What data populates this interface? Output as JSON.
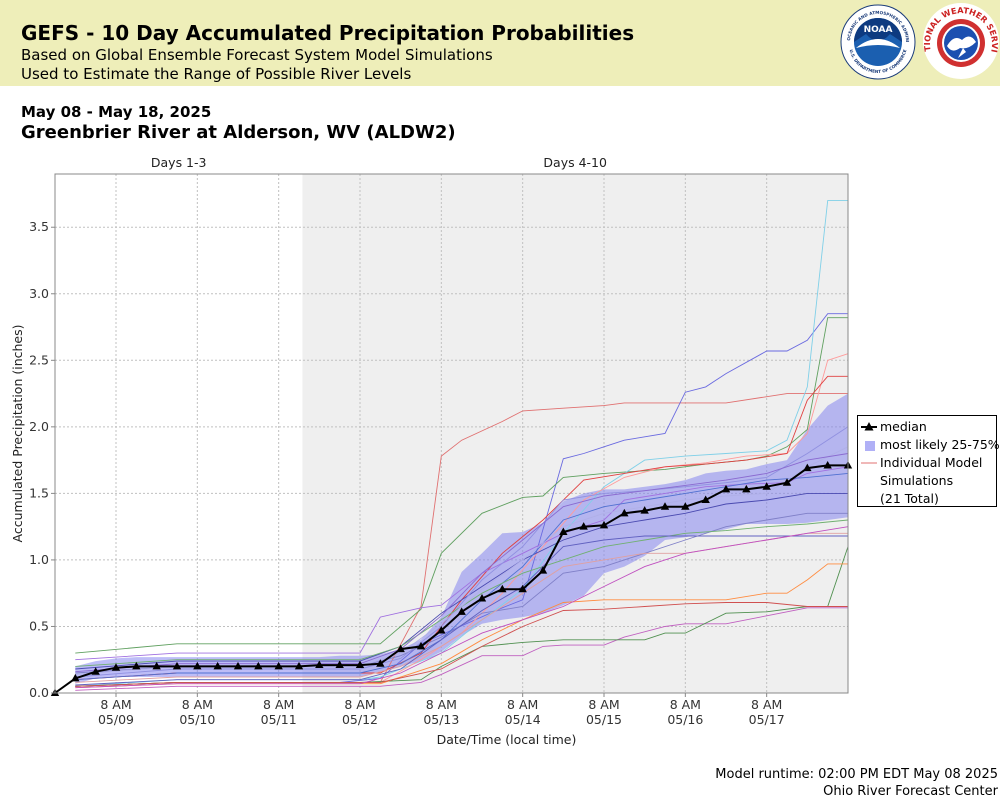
{
  "header": {
    "title": "GEFS - 10 Day Accumulated Precipitation Probabilities",
    "subtitle_1": "Based on Global Ensemble Forecast System Model Simulations",
    "subtitle_2": "Used to Estimate the Range of Possible River Levels",
    "logos": [
      "noaa-logo",
      "national-weather-service-logo"
    ],
    "noaa_logo_text": "NOAA",
    "noaa_ring_text": "NATIONAL OCEANIC AND ATMOSPHERIC ADMINISTRATION",
    "noaa_ring_bottom": "U.S. DEPARTMENT OF COMMERCE",
    "nws_ring_text": "NATIONAL WEATHER SERVICE"
  },
  "date_range": "May 08 - May 18, 2025",
  "station": "Greenbrier River at Alderson, WV (ALDW2)",
  "footer": {
    "runtime": "Model runtime: 02:00 PM EDT May 08 2025",
    "center": "Ohio River Forecast Center"
  },
  "colors": {
    "banner": "#eeeeb9",
    "band": "#7b7bf0",
    "median": "#000000",
    "shaded_region": "#efefef"
  },
  "chart_data": {
    "type": "line",
    "title": "",
    "xlabel": "Date/Time (local time)",
    "ylabel": "Accumulated Precipitation (inches)",
    "x_unit": "hours after 2 PM EDT May 08 2025",
    "xlim": [
      0,
      234
    ],
    "ylim": [
      0,
      3.9
    ],
    "y_ticks": [
      0.0,
      0.5,
      1.0,
      1.5,
      2.0,
      2.5,
      3.0,
      3.5
    ],
    "y_tick_labels": [
      "0.0",
      "0.5",
      "1.0",
      "1.5",
      "2.0",
      "2.5",
      "3.0",
      "3.5"
    ],
    "x_ticks": [
      {
        "x": 18,
        "line1": "8 AM",
        "line2": "05/09"
      },
      {
        "x": 42,
        "line1": "8 AM",
        "line2": "05/10"
      },
      {
        "x": 66,
        "line1": "8 AM",
        "line2": "05/11"
      },
      {
        "x": 90,
        "line1": "8 AM",
        "line2": "05/12"
      },
      {
        "x": 114,
        "line1": "8 AM",
        "line2": "05/13"
      },
      {
        "x": 138,
        "line1": "8 AM",
        "line2": "05/14"
      },
      {
        "x": 162,
        "line1": "8 AM",
        "line2": "05/15"
      },
      {
        "x": 186,
        "line1": "8 AM",
        "line2": "05/16"
      },
      {
        "x": 210,
        "line1": "8 AM",
        "line2": "05/17"
      }
    ],
    "periods": [
      {
        "label": "Days 1-3",
        "start": 0,
        "end": 73
      },
      {
        "label": "Days 4-10",
        "start": 73,
        "end": 234
      }
    ],
    "grid": true,
    "legend": {
      "placement": "right",
      "entries": [
        {
          "label": "median",
          "type": "median"
        },
        {
          "label": "most likely 25-75%",
          "type": "band"
        },
        {
          "label": "Individual Model",
          "type": "member"
        },
        {
          "label": "Simulations",
          "type": "text"
        },
        {
          "label": "(21 Total)",
          "type": "text"
        }
      ]
    },
    "median": {
      "name": "median",
      "x": [
        0,
        6,
        12,
        18,
        24,
        30,
        36,
        42,
        48,
        54,
        60,
        66,
        72,
        78,
        84,
        90,
        96,
        102,
        108,
        114,
        120,
        126,
        132,
        138,
        144,
        150,
        156,
        162,
        168,
        174,
        180,
        186,
        192,
        198,
        204,
        210,
        216,
        222,
        228,
        234
      ],
      "values": [
        0.0,
        0.11,
        0.16,
        0.19,
        0.2,
        0.2,
        0.2,
        0.2,
        0.2,
        0.2,
        0.2,
        0.2,
        0.2,
        0.21,
        0.21,
        0.21,
        0.22,
        0.33,
        0.35,
        0.47,
        0.61,
        0.71,
        0.78,
        0.78,
        0.92,
        1.21,
        1.25,
        1.26,
        1.35,
        1.37,
        1.4,
        1.4,
        1.45,
        1.53,
        1.53,
        1.55,
        1.58,
        1.69,
        1.71,
        1.71
      ]
    },
    "band": {
      "name": "most likely 25-75%",
      "x": [
        6,
        12,
        18,
        24,
        30,
        36,
        42,
        48,
        54,
        60,
        66,
        72,
        78,
        84,
        90,
        96,
        102,
        108,
        114,
        120,
        126,
        132,
        138,
        144,
        150,
        156,
        162,
        168,
        174,
        180,
        186,
        192,
        198,
        204,
        210,
        216,
        222,
        228,
        234
      ],
      "low": [
        0.07,
        0.11,
        0.12,
        0.12,
        0.12,
        0.12,
        0.12,
        0.12,
        0.12,
        0.12,
        0.12,
        0.12,
        0.12,
        0.12,
        0.12,
        0.16,
        0.2,
        0.24,
        0.31,
        0.43,
        0.52,
        0.55,
        0.57,
        0.6,
        0.66,
        0.73,
        0.9,
        0.95,
        1.03,
        1.15,
        1.17,
        1.2,
        1.23,
        1.27,
        1.27,
        1.27,
        1.28,
        1.3,
        1.32
      ],
      "high": [
        0.2,
        0.24,
        0.26,
        0.27,
        0.27,
        0.27,
        0.27,
        0.27,
        0.27,
        0.27,
        0.27,
        0.27,
        0.27,
        0.28,
        0.28,
        0.29,
        0.33,
        0.4,
        0.57,
        0.91,
        1.05,
        1.2,
        1.21,
        1.28,
        1.44,
        1.5,
        1.53,
        1.53,
        1.55,
        1.57,
        1.6,
        1.65,
        1.67,
        1.68,
        1.72,
        1.75,
        1.98,
        2.16,
        2.25
      ]
    },
    "members": [
      {
        "color": "#e07070",
        "x": [
          6,
          36,
          96,
          108,
          114,
          120,
          132,
          138,
          150,
          162,
          168,
          198,
          216,
          222,
          234
        ],
        "values": [
          0.05,
          0.08,
          0.08,
          0.65,
          1.78,
          1.9,
          2.04,
          2.12,
          2.14,
          2.16,
          2.18,
          2.18,
          2.25,
          2.25,
          2.25
        ]
      },
      {
        "color": "#6a6ae0",
        "x": [
          6,
          36,
          84,
          96,
          108,
          132,
          138,
          150,
          156,
          162,
          168,
          180,
          186,
          192,
          198,
          210,
          216,
          222,
          228,
          234
        ],
        "values": [
          0.05,
          0.08,
          0.08,
          0.11,
          0.37,
          0.64,
          0.7,
          1.76,
          1.8,
          1.85,
          1.9,
          1.95,
          2.26,
          2.3,
          2.4,
          2.57,
          2.57,
          2.65,
          2.85,
          2.85
        ]
      },
      {
        "color": "#60a060",
        "x": [
          6,
          36,
          90,
          96,
          108,
          114,
          126,
          138,
          144,
          150,
          162,
          180,
          192,
          204,
          210,
          216,
          222,
          228,
          234
        ],
        "values": [
          0.3,
          0.37,
          0.37,
          0.37,
          0.63,
          1.05,
          1.35,
          1.47,
          1.48,
          1.62,
          1.65,
          1.68,
          1.72,
          1.75,
          1.78,
          1.85,
          1.98,
          2.82,
          2.82
        ]
      },
      {
        "color": "#80d0e8",
        "x": [
          6,
          36,
          90,
          96,
          114,
          126,
          138,
          150,
          162,
          174,
          186,
          198,
          210,
          216,
          222,
          228,
          234
        ],
        "values": [
          0.05,
          0.1,
          0.1,
          0.12,
          0.3,
          0.55,
          0.78,
          1.2,
          1.55,
          1.75,
          1.78,
          1.8,
          1.82,
          1.9,
          2.3,
          3.7,
          3.7
        ]
      },
      {
        "color": "#ff9a9a",
        "x": [
          6,
          36,
          96,
          108,
          120,
          132,
          144,
          156,
          168,
          180,
          192,
          204,
          216,
          222,
          228,
          234
        ],
        "values": [
          0.05,
          0.08,
          0.08,
          0.25,
          0.45,
          0.75,
          1.1,
          1.45,
          1.62,
          1.7,
          1.73,
          1.78,
          1.8,
          1.95,
          2.5,
          2.55
        ]
      },
      {
        "color": "#e04040",
        "x": [
          6,
          36,
          96,
          108,
          120,
          132,
          144,
          156,
          168,
          180,
          192,
          204,
          216,
          222,
          228,
          234
        ],
        "values": [
          0.1,
          0.15,
          0.15,
          0.3,
          0.7,
          1.05,
          1.3,
          1.6,
          1.65,
          1.7,
          1.72,
          1.75,
          1.8,
          2.2,
          2.38,
          2.38
        ]
      },
      {
        "color": "#c060c0",
        "x": [
          6,
          36,
          90,
          96,
          108,
          114,
          126,
          138,
          144,
          150,
          162,
          168,
          180,
          186,
          198,
          210,
          222,
          228,
          234
        ],
        "values": [
          0.02,
          0.05,
          0.05,
          0.05,
          0.08,
          0.14,
          0.28,
          0.28,
          0.35,
          0.36,
          0.36,
          0.42,
          0.5,
          0.52,
          0.52,
          0.58,
          0.64,
          0.64,
          0.64
        ]
      },
      {
        "color": "#509050",
        "x": [
          6,
          36,
          90,
          108,
          114,
          126,
          138,
          150,
          162,
          174,
          180,
          186,
          198,
          210,
          222,
          228,
          234
        ],
        "values": [
          0.05,
          0.08,
          0.08,
          0.1,
          0.2,
          0.35,
          0.38,
          0.4,
          0.4,
          0.4,
          0.45,
          0.45,
          0.6,
          0.61,
          0.65,
          0.65,
          1.1
        ]
      },
      {
        "color": "#ff8c40",
        "x": [
          6,
          36,
          96,
          114,
          126,
          138,
          150,
          162,
          174,
          186,
          198,
          210,
          216,
          222,
          228,
          234
        ],
        "values": [
          0.04,
          0.07,
          0.07,
          0.22,
          0.4,
          0.55,
          0.68,
          0.7,
          0.7,
          0.7,
          0.7,
          0.75,
          0.75,
          0.85,
          0.97,
          0.97
        ]
      },
      {
        "color": "#d05050",
        "x": [
          6,
          36,
          96,
          114,
          126,
          138,
          150,
          162,
          174,
          186,
          198,
          210,
          222,
          234
        ],
        "values": [
          0.05,
          0.08,
          0.08,
          0.18,
          0.35,
          0.5,
          0.62,
          0.63,
          0.65,
          0.67,
          0.68,
          0.68,
          0.65,
          0.65
        ]
      },
      {
        "color": "#a070e0",
        "x": [
          6,
          36,
          90,
          96,
          108,
          114,
          126,
          138,
          150,
          162,
          168,
          180,
          192,
          204,
          216,
          222,
          234
        ],
        "values": [
          0.25,
          0.3,
          0.3,
          0.57,
          0.64,
          0.66,
          0.9,
          1.05,
          1.2,
          1.3,
          1.45,
          1.5,
          1.55,
          1.57,
          1.58,
          1.65,
          1.7
        ]
      },
      {
        "color": "#8080c8",
        "x": [
          6,
          36,
          90,
          102,
          114,
          126,
          138,
          150,
          162,
          174,
          186,
          198,
          210,
          222,
          234
        ],
        "values": [
          0.15,
          0.2,
          0.2,
          0.28,
          0.42,
          0.6,
          0.65,
          0.9,
          0.95,
          1.05,
          1.15,
          1.25,
          1.3,
          1.35,
          1.35
        ]
      },
      {
        "color": "#4a4ab0",
        "x": [
          6,
          36,
          90,
          102,
          114,
          126,
          138,
          150,
          162,
          174,
          186,
          198,
          210,
          222,
          234
        ],
        "values": [
          0.18,
          0.24,
          0.24,
          0.35,
          0.6,
          0.8,
          1.0,
          1.15,
          1.25,
          1.3,
          1.35,
          1.42,
          1.45,
          1.5,
          1.5
        ]
      },
      {
        "color": "#5070d0",
        "x": [
          6,
          36,
          90,
          102,
          114,
          126,
          138,
          150,
          162,
          174,
          186,
          198,
          210,
          222,
          234
        ],
        "values": [
          0.1,
          0.15,
          0.15,
          0.22,
          0.4,
          0.7,
          0.95,
          1.3,
          1.4,
          1.45,
          1.5,
          1.55,
          1.6,
          1.62,
          1.65
        ]
      },
      {
        "color": "#9090e0",
        "x": [
          6,
          36,
          90,
          102,
          114,
          126,
          138,
          150,
          162,
          174,
          186,
          198,
          210,
          222,
          234
        ],
        "values": [
          0.12,
          0.18,
          0.18,
          0.26,
          0.5,
          0.85,
          1.1,
          1.45,
          1.5,
          1.52,
          1.55,
          1.58,
          1.62,
          1.8,
          2.0
        ]
      },
      {
        "color": "#e0a0a0",
        "x": [
          6,
          36,
          90,
          102,
          114,
          126,
          138,
          150,
          162,
          174,
          186,
          198,
          210,
          222,
          234
        ],
        "values": [
          0.08,
          0.12,
          0.12,
          0.2,
          0.35,
          0.55,
          0.75,
          0.95,
          1.0,
          1.05,
          1.05,
          1.1,
          1.15,
          1.2,
          1.2
        ]
      },
      {
        "color": "#70b070",
        "x": [
          6,
          36,
          90,
          102,
          114,
          126,
          138,
          150,
          162,
          174,
          186,
          198,
          210,
          222,
          234
        ],
        "values": [
          0.2,
          0.25,
          0.25,
          0.35,
          0.55,
          0.75,
          0.9,
          1.0,
          1.1,
          1.15,
          1.2,
          1.22,
          1.25,
          1.27,
          1.3
        ]
      },
      {
        "color": "#6060c0",
        "x": [
          6,
          36,
          90,
          102,
          114,
          126,
          138,
          150,
          162,
          174,
          186,
          198,
          210,
          222,
          234
        ],
        "values": [
          0.06,
          0.1,
          0.1,
          0.18,
          0.4,
          0.62,
          0.8,
          1.1,
          1.15,
          1.18,
          1.18,
          1.18,
          1.18,
          1.18,
          1.18
        ]
      },
      {
        "color": "#c050c0",
        "x": [
          6,
          36,
          90,
          102,
          114,
          126,
          138,
          150,
          162,
          174,
          186,
          198,
          210,
          222,
          234
        ],
        "values": [
          0.04,
          0.07,
          0.07,
          0.15,
          0.3,
          0.45,
          0.55,
          0.65,
          0.8,
          0.95,
          1.05,
          1.1,
          1.15,
          1.2,
          1.25
        ]
      },
      {
        "color": "#b0b0e8",
        "x": [
          6,
          36,
          90,
          102,
          114,
          126,
          138,
          150,
          162,
          174,
          186,
          198,
          210,
          222,
          234
        ],
        "values": [
          0.14,
          0.2,
          0.2,
          0.3,
          0.52,
          0.78,
          1.0,
          1.25,
          1.35,
          1.4,
          1.45,
          1.48,
          1.5,
          1.7,
          1.85
        ]
      },
      {
        "color": "#8a6ad0",
        "x": [
          6,
          36,
          90,
          102,
          114,
          126,
          138,
          150,
          162,
          174,
          186,
          198,
          210,
          222,
          234
        ],
        "values": [
          0.16,
          0.22,
          0.22,
          0.33,
          0.58,
          0.9,
          1.15,
          1.4,
          1.48,
          1.52,
          1.56,
          1.6,
          1.65,
          1.75,
          1.8
        ]
      }
    ]
  }
}
